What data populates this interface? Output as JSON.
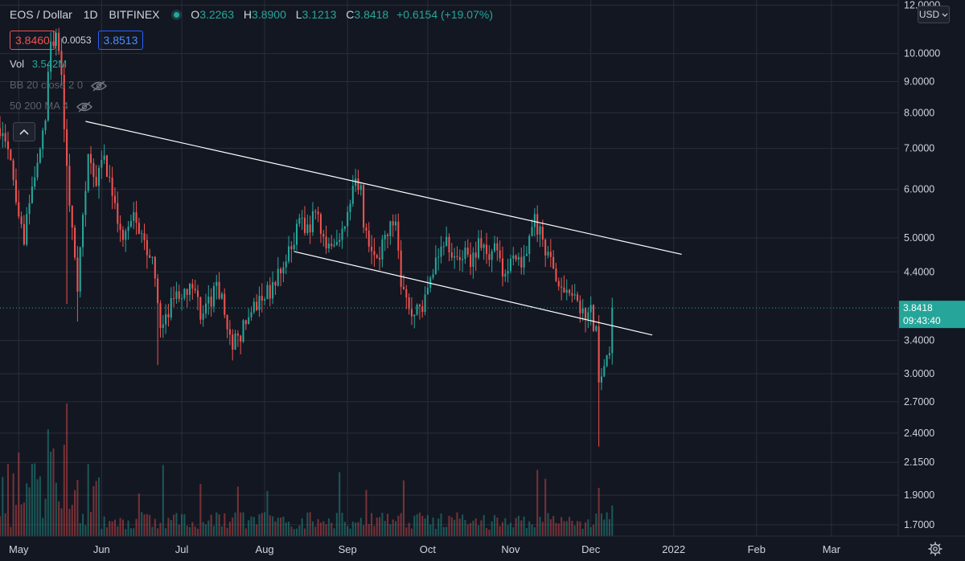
{
  "header": {
    "symbol": "EOS / Dollar",
    "interval": "1D",
    "exchange": "BITFINEX",
    "ohlc": {
      "o_label": "O",
      "o": "3.2263",
      "h_label": "H",
      "h": "3.8900",
      "l_label": "L",
      "l": "3.1213",
      "c_label": "C",
      "c": "3.8418",
      "change": "+0.6154 (+19.07%)"
    },
    "sell_price": "3.8460",
    "spread": "0.0053",
    "buy_price": "3.8513",
    "vol_label": "Vol",
    "vol_value": "3.542M",
    "indicators": [
      "BB 20 close 2 0",
      "50 200 MA 4"
    ]
  },
  "price_axis": {
    "currency": "USD",
    "current_price": "3.8418",
    "countdown": "09:43:40"
  },
  "colors": {
    "background": "#131722",
    "grid": "#2a2e39",
    "up": "#26a69a",
    "down": "#ef5350",
    "trendline": "#ffffff",
    "text": "#d1d4dc"
  },
  "icons": {
    "collapse": "chevron-up-icon",
    "visibility": "eye-off-icon",
    "settings": "gear-icon",
    "currency_dropdown": "chevron-down-icon"
  },
  "chart_data": {
    "type": "candlestick",
    "title": "EOS / Dollar",
    "y_scale": "log",
    "y_ticks": [
      12.0,
      10.0,
      9.0,
      8.0,
      7.0,
      6.0,
      5.0,
      4.4,
      3.4,
      3.0,
      2.7,
      2.4,
      2.15,
      1.9,
      1.7
    ],
    "y_tick_labels": [
      "12.0000",
      "10.0000",
      "9.0000",
      "8.0000",
      "7.0000",
      "6.0000",
      "5.0000",
      "4.4000",
      "3.4000",
      "3.0000",
      "2.7000",
      "2.4000",
      "2.1500",
      "1.9000",
      "1.7000"
    ],
    "x_ticks": [
      "May",
      "Jun",
      "Jul",
      "Aug",
      "Sep",
      "Oct",
      "Nov",
      "Dec",
      "2022",
      "Feb",
      "Mar"
    ],
    "x_range": [
      "2021-04-24",
      "2022-03-26"
    ],
    "last_close": 3.8418,
    "price_path": [
      [
        "2021-04-24",
        7.6
      ],
      [
        "2021-04-28",
        6.5
      ],
      [
        "2021-05-01",
        5.3
      ],
      [
        "2021-05-03",
        5.0
      ],
      [
        "2021-05-05",
        5.6
      ],
      [
        "2021-05-07",
        6.3
      ],
      [
        "2021-05-09",
        6.8
      ],
      [
        "2021-05-11",
        8.0
      ],
      [
        "2021-05-13",
        10.2
      ],
      [
        "2021-05-15",
        10.5
      ],
      [
        "2021-05-17",
        9.5
      ],
      [
        "2021-05-19",
        6.4
      ],
      [
        "2021-05-21",
        5.2
      ],
      [
        "2021-05-23",
        4.2
      ],
      [
        "2021-05-25",
        5.3
      ],
      [
        "2021-05-27",
        6.8
      ],
      [
        "2021-05-30",
        6.2
      ],
      [
        "2021-06-02",
        6.7
      ],
      [
        "2021-06-05",
        5.9
      ],
      [
        "2021-06-08",
        5.0
      ],
      [
        "2021-06-11",
        5.2
      ],
      [
        "2021-06-14",
        5.4
      ],
      [
        "2021-06-17",
        4.9
      ],
      [
        "2021-06-20",
        4.6
      ],
      [
        "2021-06-23",
        3.5
      ],
      [
        "2021-06-26",
        3.8
      ],
      [
        "2021-06-29",
        4.1
      ],
      [
        "2021-07-02",
        4.0
      ],
      [
        "2021-07-05",
        4.1
      ],
      [
        "2021-07-08",
        3.8
      ],
      [
        "2021-07-11",
        3.9
      ],
      [
        "2021-07-14",
        4.2
      ],
      [
        "2021-07-17",
        3.8
      ],
      [
        "2021-07-20",
        3.3
      ],
      [
        "2021-07-22",
        3.45
      ],
      [
        "2021-07-25",
        3.6
      ],
      [
        "2021-07-28",
        3.8
      ],
      [
        "2021-07-31",
        3.95
      ],
      [
        "2021-08-03",
        4.1
      ],
      [
        "2021-08-06",
        4.3
      ],
      [
        "2021-08-09",
        4.6
      ],
      [
        "2021-08-12",
        4.9
      ],
      [
        "2021-08-14",
        5.5
      ],
      [
        "2021-08-17",
        5.1
      ],
      [
        "2021-08-20",
        5.6
      ],
      [
        "2021-08-23",
        5.0
      ],
      [
        "2021-08-26",
        4.9
      ],
      [
        "2021-08-29",
        5.1
      ],
      [
        "2021-09-01",
        5.5
      ],
      [
        "2021-09-04",
        6.1
      ],
      [
        "2021-09-06",
        6.3
      ],
      [
        "2021-09-07",
        5.2
      ],
      [
        "2021-09-10",
        4.6
      ],
      [
        "2021-09-13",
        4.7
      ],
      [
        "2021-09-16",
        5.1
      ],
      [
        "2021-09-19",
        5.4
      ],
      [
        "2021-09-21",
        4.3
      ],
      [
        "2021-09-24",
        3.8
      ],
      [
        "2021-09-27",
        3.85
      ],
      [
        "2021-09-29",
        3.9
      ],
      [
        "2021-10-02",
        4.4
      ],
      [
        "2021-10-05",
        4.7
      ],
      [
        "2021-10-08",
        4.9
      ],
      [
        "2021-10-11",
        4.6
      ],
      [
        "2021-10-14",
        4.75
      ],
      [
        "2021-10-17",
        4.55
      ],
      [
        "2021-10-20",
        4.85
      ],
      [
        "2021-10-23",
        4.7
      ],
      [
        "2021-10-26",
        4.8
      ],
      [
        "2021-10-29",
        4.4
      ],
      [
        "2021-11-01",
        4.6
      ],
      [
        "2021-11-04",
        4.55
      ],
      [
        "2021-11-07",
        4.8
      ],
      [
        "2021-11-10",
        5.3
      ],
      [
        "2021-11-13",
        5.0
      ],
      [
        "2021-11-16",
        4.5
      ],
      [
        "2021-11-19",
        4.2
      ],
      [
        "2021-11-22",
        4.05
      ],
      [
        "2021-11-25",
        4.1
      ],
      [
        "2021-11-27",
        3.85
      ],
      [
        "2021-11-29",
        3.75
      ],
      [
        "2021-12-01",
        3.8
      ],
      [
        "2021-12-03",
        3.5
      ],
      [
        "2021-12-04",
        2.95
      ],
      [
        "2021-12-06",
        3.05
      ],
      [
        "2021-12-08",
        3.22
      ],
      [
        "2021-12-09",
        3.8418
      ]
    ],
    "trendlines": [
      {
        "from": [
          "2021-05-26",
          7.75
        ],
        "to": [
          "2022-01-04",
          4.7
        ]
      },
      {
        "from": [
          "2021-08-12",
          4.75
        ],
        "to": [
          "2021-12-24",
          3.47
        ]
      }
    ]
  }
}
